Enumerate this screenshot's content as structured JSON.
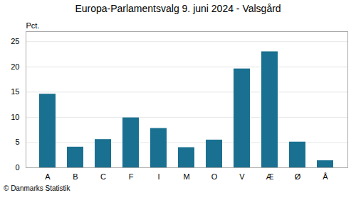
{
  "chart_data": {
    "type": "bar",
    "title": "Europa-Parlamentsvalg 9. juni 2024 - Valsgård",
    "categories": [
      "A",
      "B",
      "C",
      "F",
      "I",
      "M",
      "O",
      "V",
      "Æ",
      "Ø",
      "Å"
    ],
    "values": [
      14.6,
      4.1,
      5.6,
      9.9,
      7.8,
      4.0,
      5.5,
      19.6,
      23.0,
      5.1,
      1.4
    ],
    "color": "#1a7090",
    "ylabel": "Pct.",
    "ylim": [
      0,
      27
    ],
    "yticks": [
      0,
      5,
      10,
      15,
      20,
      25
    ],
    "grid": true,
    "footnote": "© Danmarks Statistik"
  }
}
